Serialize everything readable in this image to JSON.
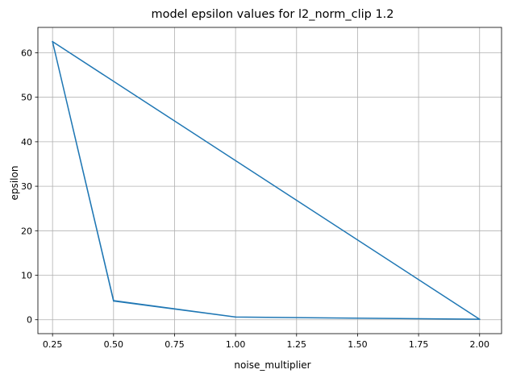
{
  "chart_data": {
    "type": "line",
    "title": "model epsilon values for l2_norm_clip 1.2",
    "xlabel": "noise_multiplier",
    "ylabel": "epsilon",
    "xlim": [
      0.19,
      2.09
    ],
    "ylim": [
      -3.13,
      65.7
    ],
    "xticks": [
      0.25,
      0.5,
      0.75,
      1.0,
      1.25,
      1.5,
      1.75,
      2.0
    ],
    "xtick_labels": [
      "0.25",
      "0.50",
      "0.75",
      "1.00",
      "1.25",
      "1.50",
      "1.75",
      "2.00"
    ],
    "yticks": [
      0,
      10,
      20,
      30,
      40,
      50,
      60
    ],
    "ytick_labels": [
      "0",
      "10",
      "20",
      "30",
      "40",
      "50",
      "60"
    ],
    "grid": true,
    "color": "#1f77b4",
    "series": [
      {
        "x": [
          0.25,
          0.5,
          1.0,
          2.0,
          0.25,
          0.5,
          1.0,
          2.0
        ],
        "y": [
          62.5,
          4.3,
          0.6,
          0.1,
          62.5,
          4.2,
          0.6,
          0.1
        ]
      }
    ]
  }
}
